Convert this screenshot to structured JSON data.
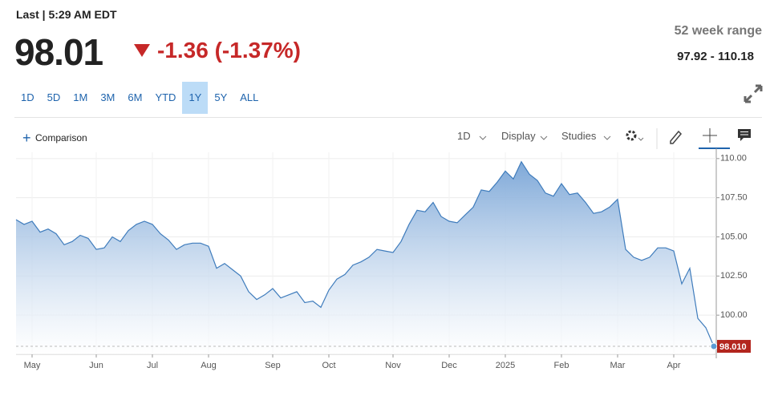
{
  "header": {
    "last": "Last | 5:29 AM EDT",
    "price": "98.01",
    "change": "-1.36 (-1.37%)",
    "range_title": "52 week range",
    "range_value": "97.92 - 110.18"
  },
  "range_buttons": [
    {
      "label": "1D"
    },
    {
      "label": "5D"
    },
    {
      "label": "1M"
    },
    {
      "label": "3M"
    },
    {
      "label": "6M"
    },
    {
      "label": "YTD"
    },
    {
      "label": "1Y",
      "selected": true
    },
    {
      "label": "5Y"
    },
    {
      "label": "ALL"
    }
  ],
  "toolbar": {
    "comparison": "Comparison",
    "interval": "1D",
    "display": "Display",
    "studies": "Studies"
  },
  "chart_data": {
    "type": "area",
    "color": "#3f7cbc",
    "grid": true,
    "categories": [
      null,
      null,
      "May",
      null,
      null,
      null,
      null,
      null,
      null,
      null,
      "Jun",
      null,
      null,
      null,
      null,
      null,
      null,
      "Jul",
      null,
      null,
      null,
      null,
      null,
      null,
      "Aug",
      null,
      null,
      null,
      null,
      null,
      null,
      null,
      "Sep",
      null,
      null,
      null,
      null,
      null,
      null,
      "Oct",
      null,
      null,
      null,
      null,
      null,
      null,
      null,
      "Nov",
      null,
      null,
      null,
      null,
      null,
      null,
      "Dec",
      null,
      null,
      null,
      null,
      null,
      null,
      "2025",
      null,
      null,
      null,
      null,
      null,
      null,
      "Feb",
      null,
      null,
      null,
      null,
      null,
      null,
      "Mar",
      null,
      null,
      null,
      null,
      null,
      null,
      "Apr",
      null,
      null,
      null,
      null,
      null
    ],
    "values": [
      106.1,
      105.8,
      106.0,
      105.3,
      105.5,
      105.2,
      104.5,
      104.7,
      105.1,
      104.9,
      104.2,
      104.3,
      105.0,
      104.7,
      105.4,
      105.8,
      106.0,
      105.8,
      105.2,
      104.8,
      104.2,
      104.5,
      104.6,
      104.6,
      104.4,
      103.0,
      103.3,
      102.9,
      102.5,
      101.5,
      101.0,
      101.3,
      101.7,
      101.1,
      101.3,
      101.5,
      100.8,
      100.9,
      100.5,
      101.6,
      102.3,
      102.6,
      103.2,
      103.4,
      103.7,
      104.2,
      104.1,
      104.0,
      104.7,
      105.8,
      106.7,
      106.6,
      107.2,
      106.3,
      106.0,
      105.9,
      106.4,
      106.9,
      108.0,
      107.9,
      108.5,
      109.2,
      108.7,
      109.8,
      109.0,
      108.6,
      107.8,
      107.6,
      108.4,
      107.7,
      107.8,
      107.2,
      106.5,
      106.6,
      106.9,
      107.4,
      104.2,
      103.7,
      103.5,
      103.7,
      104.3,
      104.3,
      104.1,
      102.0,
      103.0,
      99.8,
      99.2,
      98.01
    ],
    "ylim": [
      97.5,
      110.4
    ],
    "yticks": [
      {
        "value": 100,
        "label": "100.00"
      },
      {
        "value": 102.5,
        "label": "102.50"
      },
      {
        "value": 105,
        "label": "105.00"
      },
      {
        "value": 107.5,
        "label": "107.50"
      },
      {
        "value": 110,
        "label": "110.00"
      }
    ],
    "last_label": {
      "value": 98.01,
      "label": "98.010",
      "color": "#b3261e"
    }
  }
}
